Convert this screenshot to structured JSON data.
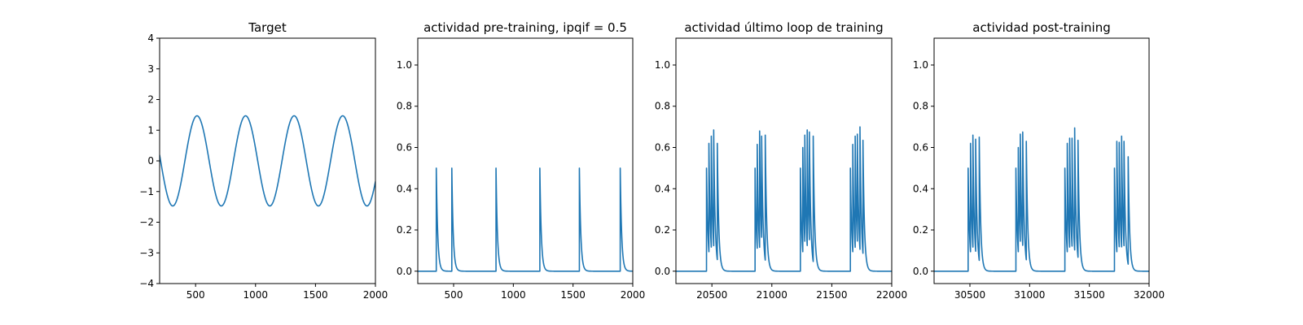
{
  "colors": {
    "series": "#1f77b4"
  },
  "chart_data": [
    {
      "type": "line",
      "title": "Target",
      "xlabel": "",
      "ylabel": "",
      "xlim": [
        200,
        2000
      ],
      "ylim": [
        -4,
        4
      ],
      "xticks": [
        500,
        1000,
        1500,
        2000
      ],
      "yticks": [
        -4,
        -3,
        -2,
        -1,
        0,
        1,
        2,
        3,
        4
      ],
      "xtick_labels": [
        "500",
        "1000",
        "1500",
        "2000"
      ],
      "ytick_labels": [
        "−4",
        "−3",
        "−2",
        "−1",
        "0",
        "1",
        "2",
        "3",
        "4"
      ],
      "series": [
        {
          "kind": "sine",
          "amplitude": 1.47,
          "period": 405,
          "peak_x": 512,
          "x_start": 200,
          "x_end": 2000
        }
      ]
    },
    {
      "type": "line",
      "title": "actividad pre-training, ipqif = 0.5",
      "xlabel": "",
      "ylabel": "",
      "xlim": [
        200,
        2000
      ],
      "ylim": [
        -0.06,
        1.13
      ],
      "xticks": [
        500,
        1000,
        1500,
        2000
      ],
      "yticks": [
        0.0,
        0.2,
        0.4,
        0.6,
        0.8,
        1.0
      ],
      "xtick_labels": [
        "500",
        "1000",
        "1500",
        "2000"
      ],
      "ytick_labels": [
        "0.0",
        "0.2",
        "0.4",
        "0.6",
        "0.8",
        "1.0"
      ],
      "series": [
        {
          "kind": "spikes",
          "decay": 12,
          "x_start": 200,
          "x_end": 2000,
          "spikes": [
            [
              355,
              0.5
            ],
            [
              485,
              0.5
            ],
            [
              855,
              0.5
            ],
            [
              1222,
              0.5
            ],
            [
              1553,
              0.5
            ],
            [
              1895,
              0.5
            ]
          ]
        }
      ]
    },
    {
      "type": "line",
      "title": "actividad último loop de training",
      "xlabel": "",
      "ylabel": "",
      "xlim": [
        20200,
        22000
      ],
      "ylim": [
        -0.06,
        1.13
      ],
      "xticks": [
        20500,
        21000,
        21500,
        22000
      ],
      "yticks": [
        0.0,
        0.2,
        0.4,
        0.6,
        0.8,
        1.0
      ],
      "xtick_labels": [
        "20500",
        "21000",
        "21500",
        "22000"
      ],
      "ytick_labels": [
        "0.0",
        "0.2",
        "0.4",
        "0.6",
        "0.8",
        "1.0"
      ],
      "series": [
        {
          "kind": "spikes",
          "decay": 12,
          "x_start": 20200,
          "x_end": 22000,
          "spikes": [
            [
              20455,
              0.5
            ],
            [
              20475,
              0.62
            ],
            [
              20495,
              0.655
            ],
            [
              20515,
              0.685
            ],
            [
              20545,
              0.62
            ],
            [
              20860,
              0.5
            ],
            [
              20878,
              0.615
            ],
            [
              20898,
              0.68
            ],
            [
              20915,
              0.655
            ],
            [
              20945,
              0.66
            ],
            [
              21238,
              0.5
            ],
            [
              21258,
              0.6
            ],
            [
              21275,
              0.66
            ],
            [
              21295,
              0.685
            ],
            [
              21313,
              0.675
            ],
            [
              21345,
              0.655
            ],
            [
              21655,
              0.5
            ],
            [
              21675,
              0.615
            ],
            [
              21695,
              0.655
            ],
            [
              21713,
              0.665
            ],
            [
              21735,
              0.7
            ],
            [
              21760,
              0.635
            ]
          ]
        }
      ]
    },
    {
      "type": "line",
      "title": "actividad post-training",
      "xlabel": "",
      "ylabel": "",
      "xlim": [
        30200,
        32000
      ],
      "ylim": [
        -0.06,
        1.13
      ],
      "xticks": [
        30500,
        31000,
        31500,
        32000
      ],
      "yticks": [
        0.0,
        0.2,
        0.4,
        0.6,
        0.8,
        1.0
      ],
      "xtick_labels": [
        "30500",
        "31000",
        "31500",
        "32000"
      ],
      "ytick_labels": [
        "0.0",
        "0.2",
        "0.4",
        "0.6",
        "0.8",
        "1.0"
      ],
      "series": [
        {
          "kind": "spikes",
          "decay": 12,
          "x_start": 30200,
          "x_end": 32000,
          "spikes": [
            [
              30485,
              0.5
            ],
            [
              30505,
              0.62
            ],
            [
              30525,
              0.66
            ],
            [
              30548,
              0.64
            ],
            [
              30578,
              0.65
            ],
            [
              30885,
              0.5
            ],
            [
              30905,
              0.6
            ],
            [
              30922,
              0.665
            ],
            [
              30942,
              0.675
            ],
            [
              30972,
              0.63
            ],
            [
              31295,
              0.5
            ],
            [
              31315,
              0.62
            ],
            [
              31335,
              0.645
            ],
            [
              31355,
              0.645
            ],
            [
              31377,
              0.695
            ],
            [
              31405,
              0.635
            ],
            [
              31710,
              0.5
            ],
            [
              31730,
              0.63
            ],
            [
              31750,
              0.625
            ],
            [
              31770,
              0.655
            ],
            [
              31790,
              0.63
            ],
            [
              31825,
              0.555
            ]
          ]
        }
      ]
    }
  ]
}
